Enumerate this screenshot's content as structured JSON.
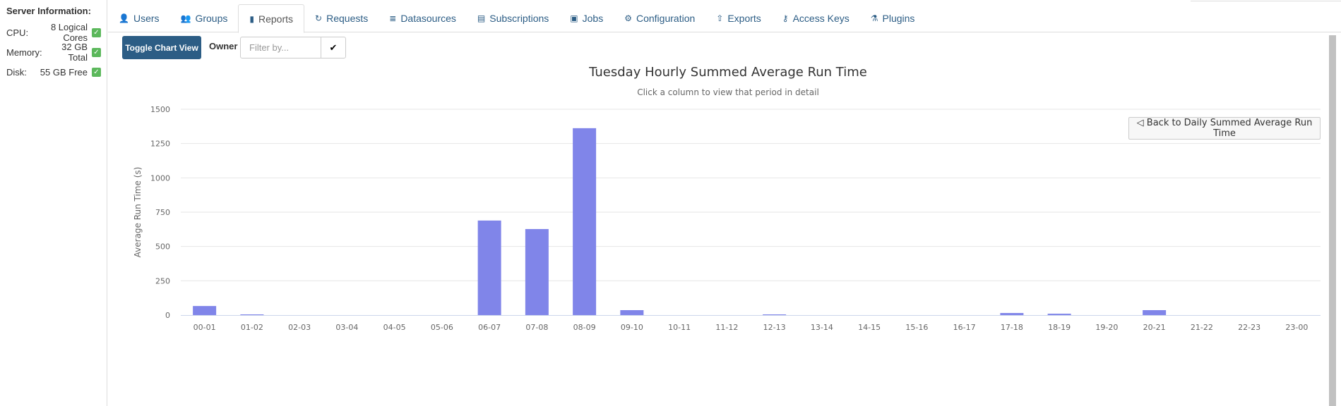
{
  "sidebar": {
    "title": "Server Information:",
    "rows": [
      {
        "label": "CPU:",
        "value": "8 Logical Cores",
        "status": "ok"
      },
      {
        "label": "Memory:",
        "value": "32 GB Total",
        "status": "ok"
      },
      {
        "label": "Disk:",
        "value": "55 GB Free",
        "status": "ok"
      }
    ]
  },
  "tabs": [
    {
      "label": "Users",
      "icon": "user-icon",
      "glyph": "👤"
    },
    {
      "label": "Groups",
      "icon": "users-icon",
      "glyph": "👥"
    },
    {
      "label": "Reports",
      "icon": "file-icon",
      "glyph": "▮",
      "active": true
    },
    {
      "label": "Requests",
      "icon": "history-icon",
      "glyph": "↻"
    },
    {
      "label": "Datasources",
      "icon": "database-icon",
      "glyph": "≣"
    },
    {
      "label": "Subscriptions",
      "icon": "newspaper-icon",
      "glyph": "▤"
    },
    {
      "label": "Jobs",
      "icon": "briefcase-icon",
      "glyph": "▣"
    },
    {
      "label": "Configuration",
      "icon": "cogs-icon",
      "glyph": "⚙"
    },
    {
      "label": "Exports",
      "icon": "share-icon",
      "glyph": "⇧"
    },
    {
      "label": "Access Keys",
      "icon": "key-icon",
      "glyph": "⚷"
    },
    {
      "label": "Plugins",
      "icon": "flask-icon",
      "glyph": "⚗"
    }
  ],
  "toolbar": {
    "toggle_label": "Toggle Chart View",
    "owner_label": "Owner",
    "filter_placeholder": "Filter by...",
    "filter_value": "",
    "apply_glyph": "✔"
  },
  "colors": {
    "bar": "#8085e9",
    "button": "#2c5d85",
    "ok": "#5cb85c"
  },
  "back_button": "◁ Back to Daily Summed Average Run Time",
  "chart_data": {
    "type": "bar",
    "title": "Tuesday Hourly Summed Average Run Time",
    "subtitle": "Click a column to view that period in detail",
    "xlabel": "",
    "ylabel": "Average Run Time (s)",
    "ylim": [
      0,
      1500
    ],
    "yticks": [
      0,
      250,
      500,
      750,
      1000,
      1250,
      1500
    ],
    "grid": true,
    "categories": [
      "00-01",
      "01-02",
      "02-03",
      "03-04",
      "04-05",
      "05-06",
      "06-07",
      "07-08",
      "08-09",
      "09-10",
      "10-11",
      "11-12",
      "12-13",
      "13-14",
      "14-15",
      "15-16",
      "16-17",
      "17-18",
      "18-19",
      "19-20",
      "20-21",
      "21-22",
      "22-23",
      "23-00"
    ],
    "values": [
      66,
      5,
      0,
      0,
      0,
      0,
      689,
      627,
      1362,
      36,
      0,
      0,
      5,
      0,
      0,
      0,
      0,
      15,
      10,
      0,
      36,
      0,
      0,
      0
    ]
  }
}
